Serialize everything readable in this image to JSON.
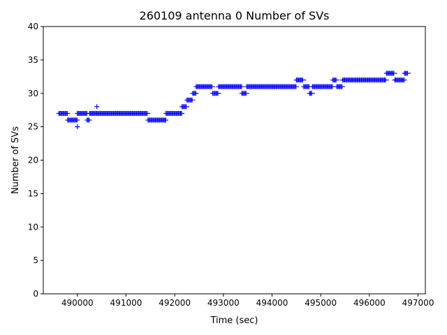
{
  "chart_data": {
    "type": "scatter",
    "title": "260109 antenna 0 Number of SVs",
    "xlabel": "Time (sec)",
    "ylabel": "Number of SVs",
    "xlim": [
      489300,
      497150
    ],
    "ylim": [
      0,
      40
    ],
    "x_ticks": [
      490000,
      491000,
      492000,
      493000,
      494000,
      495000,
      496000,
      497000
    ],
    "y_ticks": [
      0,
      5,
      10,
      15,
      20,
      25,
      30,
      35,
      40
    ],
    "x_tick_labels": [
      "490000",
      "491000",
      "492000",
      "493000",
      "494000",
      "495000",
      "496000",
      "497000"
    ],
    "y_tick_labels": [
      "0",
      "5",
      "10",
      "15",
      "20",
      "25",
      "30",
      "35",
      "40"
    ],
    "grid": false,
    "legend": "none",
    "marker": "+",
    "color": "#0000ff",
    "segments": [
      {
        "x_start": 489620,
        "x_end": 489800,
        "y": 27
      },
      {
        "x_start": 489800,
        "x_end": 490000,
        "y": 26
      },
      {
        "x_start": 490000,
        "x_end": 490000,
        "y": 25
      },
      {
        "x_start": 490000,
        "x_end": 490200,
        "y": 27
      },
      {
        "x_start": 490200,
        "x_end": 490250,
        "y": 26
      },
      {
        "x_start": 490250,
        "x_end": 490400,
        "y": 27
      },
      {
        "x_start": 490400,
        "x_end": 490400,
        "y": 28
      },
      {
        "x_start": 490400,
        "x_end": 491450,
        "y": 27
      },
      {
        "x_start": 491450,
        "x_end": 491820,
        "y": 26
      },
      {
        "x_start": 491820,
        "x_end": 492150,
        "y": 27
      },
      {
        "x_start": 492150,
        "x_end": 492250,
        "y": 28
      },
      {
        "x_start": 492250,
        "x_end": 492370,
        "y": 29
      },
      {
        "x_start": 492370,
        "x_end": 492440,
        "y": 30
      },
      {
        "x_start": 492440,
        "x_end": 492780,
        "y": 31
      },
      {
        "x_start": 492780,
        "x_end": 492900,
        "y": 30
      },
      {
        "x_start": 492900,
        "x_end": 493380,
        "y": 31
      },
      {
        "x_start": 493380,
        "x_end": 493480,
        "y": 30
      },
      {
        "x_start": 493480,
        "x_end": 494500,
        "y": 31
      },
      {
        "x_start": 494500,
        "x_end": 494650,
        "y": 32
      },
      {
        "x_start": 494650,
        "x_end": 494770,
        "y": 31
      },
      {
        "x_start": 494770,
        "x_end": 494830,
        "y": 30
      },
      {
        "x_start": 494830,
        "x_end": 495250,
        "y": 31
      },
      {
        "x_start": 495250,
        "x_end": 495330,
        "y": 32
      },
      {
        "x_start": 495330,
        "x_end": 495450,
        "y": 31
      },
      {
        "x_start": 495450,
        "x_end": 496350,
        "y": 32
      },
      {
        "x_start": 496350,
        "x_end": 496520,
        "y": 33
      },
      {
        "x_start": 496520,
        "x_end": 496720,
        "y": 32
      },
      {
        "x_start": 496720,
        "x_end": 496800,
        "y": 33
      }
    ]
  }
}
